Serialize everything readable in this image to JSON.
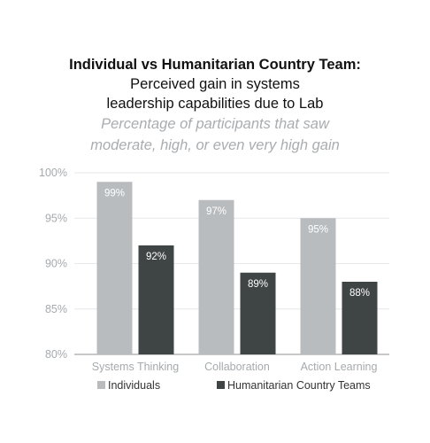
{
  "chart_data": {
    "type": "bar",
    "title": "Individual vs Humanitarian Country Team:",
    "subtitle_lines": [
      "Perceived gain in systems",
      "leadership capabilities due to Lab"
    ],
    "caption_lines": [
      "Percentage of participants that saw",
      "moderate, high, or even very high gain"
    ],
    "categories": [
      "Systems Thinking",
      "Collaboration",
      "Action Learning"
    ],
    "series": [
      {
        "name": "Individuals",
        "values": [
          99,
          97,
          95
        ],
        "color": "#b8bcbf"
      },
      {
        "name": "Humanitarian Country Teams",
        "values": [
          92,
          89,
          88
        ],
        "color": "#3f4445"
      }
    ],
    "ylim": [
      80,
      100
    ],
    "yticks": [
      80,
      85,
      90,
      95,
      100
    ],
    "value_suffix": "%",
    "grid": true,
    "legend_position": "bottom"
  }
}
